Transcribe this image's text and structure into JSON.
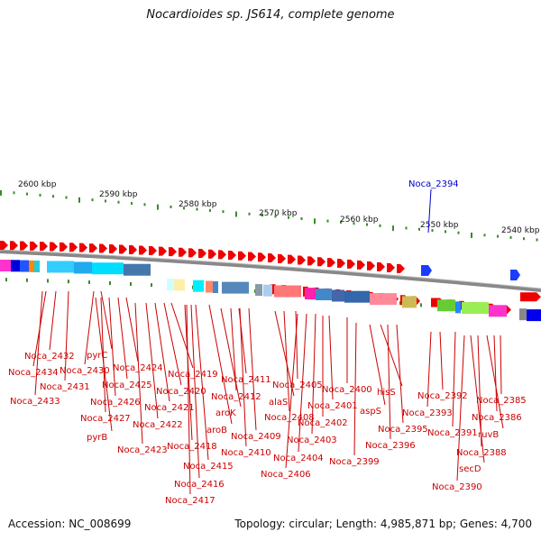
{
  "header": {
    "title": "Nocardioides sp. JS614, complete genome"
  },
  "footer": {
    "accession": "Accession: NC_008699",
    "info": "Topology: circular; Length: 4,985,871 bp; Genes: 4,700"
  },
  "scale_labels": [
    "2600 kbp",
    "2590 kbp",
    "2580 kbp",
    "2570 kbp",
    "2560 kbp",
    "2550 kbp",
    "2540 kbp"
  ],
  "highlight": {
    "label": "Noca_2394"
  },
  "gene_labels": [
    "Noca_2432",
    "Noca_2434",
    "Noca_2431",
    "Noca_2433",
    "pyrC",
    "Noca_2430",
    "Noca_2424",
    "Noca_2425",
    "Noca_2426",
    "Noca_2427",
    "pyrB",
    "Noca_2419",
    "Noca_2420",
    "Noca_2421",
    "Noca_2422",
    "Noca_2423",
    "Noca_2418",
    "aroB",
    "Noca_2415",
    "Noca_2416",
    "Noca_2417",
    "Noca_2411",
    "Noca_2412",
    "aroK",
    "Noca_2410",
    "Noca_2409",
    "alaS",
    "Noca_2405",
    "Noca_2408",
    "Noca_2404",
    "Noca_2406",
    "Noca_2403",
    "Noca_2401",
    "Noca_2402",
    "Noca_2400",
    "hisS",
    "aspS",
    "Noca_2399",
    "Noca_2395",
    "Noca_2396",
    "Noca_2392",
    "Noca_2393",
    "Noca_2391",
    "Noca_2385",
    "Noca_2386",
    "ruvB",
    "Noca_2388",
    "secD",
    "Noca_2390"
  ]
}
